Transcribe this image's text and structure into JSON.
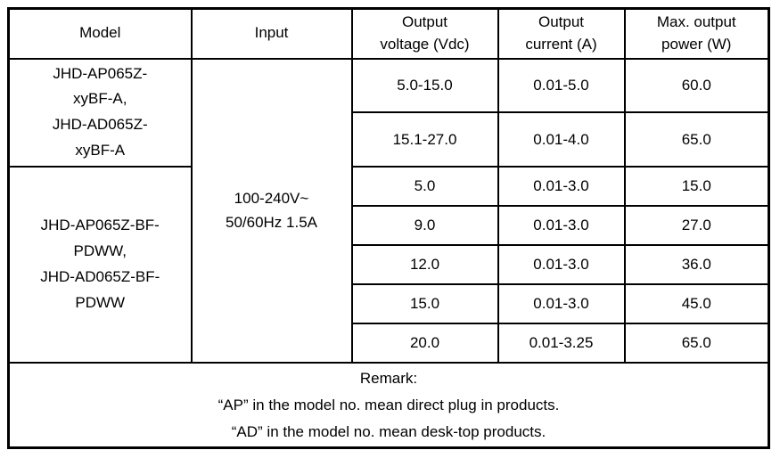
{
  "table": {
    "headers": {
      "model": "Model",
      "input": "Input",
      "output_voltage": "Output\nvoltage (Vdc)",
      "output_current": "Output\ncurrent (A)",
      "max_output_power": "Max. output\npower (W)"
    },
    "model_groups": [
      {
        "label": "JHD-AP065Z-\nxyBF-A,\nJHD-AD065Z-\nxyBF-A"
      },
      {
        "label": "JHD-AP065Z-BF-\nPDWW,\nJHD-AD065Z-BF-\nPDWW"
      }
    ],
    "input_spec": "100-240V~\n50/60Hz 1.5A",
    "rows": [
      {
        "voltage": "5.0-15.0",
        "current": "0.01-5.0",
        "power": "60.0"
      },
      {
        "voltage": "15.1-27.0",
        "current": "0.01-4.0",
        "power": "65.0"
      },
      {
        "voltage": "5.0",
        "current": "0.01-3.0",
        "power": "15.0"
      },
      {
        "voltage": "9.0",
        "current": "0.01-3.0",
        "power": "27.0"
      },
      {
        "voltage": "12.0",
        "current": "0.01-3.0",
        "power": "36.0"
      },
      {
        "voltage": "15.0",
        "current": "0.01-3.0",
        "power": "45.0"
      },
      {
        "voltage": "20.0",
        "current": "0.01-3.25",
        "power": "65.0"
      }
    ],
    "remark": {
      "title": "Remark:",
      "line1": "“AP” in the model no. mean direct plug in products.",
      "line2": "“AD” in the model no. mean desk-top products."
    }
  }
}
